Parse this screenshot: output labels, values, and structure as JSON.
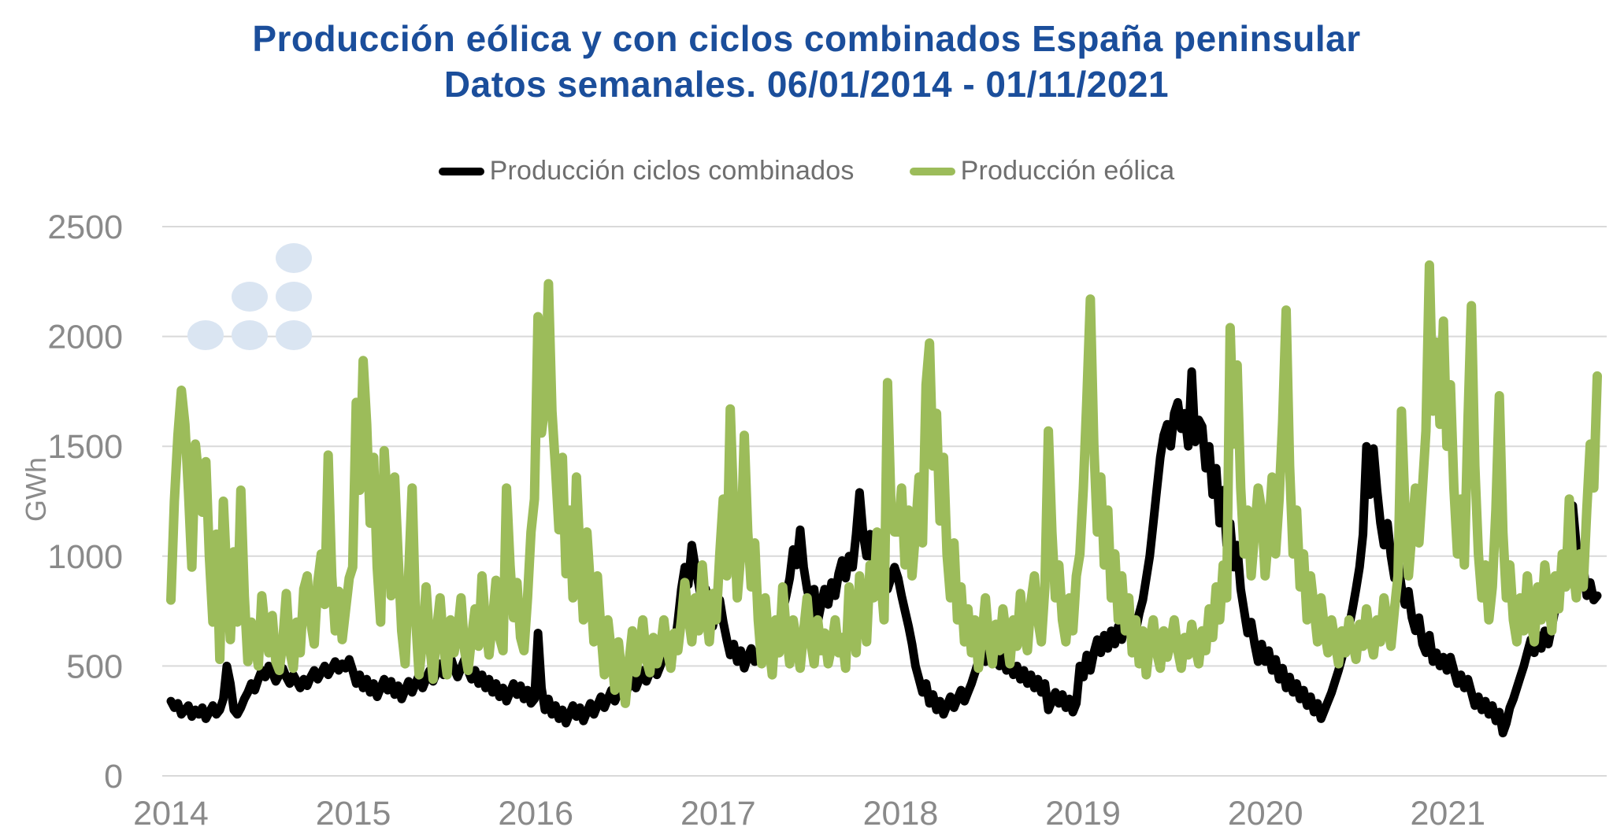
{
  "header": {
    "title_line1": "Producción eólica y con ciclos combinados España peninsular",
    "title_line2": "Datos semanales. 06/01/2014 - 01/11/2021",
    "title_color": "#1b4e9b"
  },
  "legend": {
    "items": [
      {
        "label": "Producción ciclos combinados",
        "color": "#000000"
      },
      {
        "label": "Producción eólica",
        "color": "#9cbc5a"
      }
    ]
  },
  "watermark": {
    "color": "#dae5f2"
  },
  "chart_data": {
    "type": "line",
    "title": "Producción eólica y con ciclos combinados España peninsular",
    "subtitle": "Datos semanales. 06/01/2014 - 01/11/2021",
    "xlabel": "",
    "ylabel": "GWh",
    "frequency": "weekly",
    "x_start": "06/01/2014",
    "x_end": "01/11/2021",
    "x_tick_labels": [
      "2014",
      "2015",
      "2016",
      "2017",
      "2018",
      "2019",
      "2020",
      "2021"
    ],
    "y_ticks": [
      0,
      500,
      1000,
      1500,
      2000,
      2500
    ],
    "ylim": [
      0,
      2500
    ],
    "grid": "horizontal",
    "grid_color": "#d9d9d9",
    "tick_label_color": "#8a8a8a",
    "legend_position": "top",
    "series": [
      {
        "name": "Producción ciclos combinados",
        "color": "#000000",
        "values": [
          340,
          310,
          330,
          280,
          300,
          320,
          270,
          300,
          280,
          310,
          260,
          290,
          320,
          280,
          300,
          350,
          500,
          420,
          300,
          280,
          310,
          350,
          380,
          420,
          390,
          440,
          480,
          450,
          500,
          470,
          430,
          460,
          490,
          450,
          420,
          460,
          430,
          400,
          440,
          410,
          450,
          480,
          440,
          470,
          500,
          460,
          490,
          520,
          480,
          510,
          490,
          530,
          480,
          420,
          460,
          400,
          440,
          380,
          420,
          360,
          400,
          440,
          390,
          430,
          370,
          410,
          350,
          390,
          430,
          380,
          420,
          460,
          400,
          440,
          480,
          430,
          470,
          510,
          460,
          500,
          540,
          490,
          450,
          490,
          530,
          480,
          440,
          480,
          420,
          460,
          400,
          440,
          380,
          420,
          360,
          400,
          340,
          380,
          420,
          370,
          410,
          350,
          390,
          330,
          350,
          650,
          400,
          300,
          350,
          280,
          320,
          260,
          300,
          240,
          280,
          320,
          270,
          310,
          250,
          290,
          330,
          280,
          320,
          360,
          310,
          350,
          390,
          340,
          380,
          420,
          370,
          410,
          450,
          400,
          440,
          480,
          430,
          470,
          510,
          460,
          500,
          550,
          590,
          540,
          580,
          700,
          850,
          950,
          870,
          1050,
          950,
          870,
          780,
          850,
          750,
          680,
          750,
          800,
          700,
          620,
          550,
          600,
          520,
          570,
          490,
          540,
          580,
          520,
          560,
          600,
          550,
          640,
          580,
          700,
          640,
          750,
          820,
          900,
          1030,
          960,
          1120,
          950,
          850,
          780,
          850,
          700,
          780,
          850,
          780,
          880,
          820,
          920,
          980,
          900,
          1000,
          950,
          1100,
          1290,
          1100,
          1000,
          1100,
          950,
          1050,
          900,
          1000,
          850,
          900,
          950,
          900,
          820,
          750,
          680,
          600,
          500,
          440,
          380,
          420,
          330,
          370,
          300,
          340,
          280,
          320,
          360,
          310,
          350,
          390,
          340,
          380,
          420,
          470,
          520,
          570,
          520,
          560,
          600,
          550,
          500,
          540,
          480,
          520,
          460,
          500,
          440,
          480,
          420,
          460,
          400,
          440,
          380,
          420,
          300,
          340,
          380,
          330,
          370,
          310,
          350,
          290,
          330,
          500,
          450,
          550,
          480,
          560,
          620,
          560,
          640,
          580,
          660,
          600,
          680,
          620,
          700,
          650,
          720,
          660,
          740,
          800,
          900,
          1000,
          1150,
          1300,
          1450,
          1550,
          1600,
          1500,
          1650,
          1700,
          1580,
          1650,
          1500,
          1840,
          1520,
          1620,
          1590,
          1400,
          1500,
          1280,
          1400,
          1150,
          1300,
          1050,
          1150,
          950,
          1050,
          850,
          750,
          650,
          700,
          600,
          520,
          600,
          520,
          570,
          480,
          530,
          440,
          490,
          400,
          450,
          380,
          420,
          350,
          390,
          320,
          360,
          290,
          330,
          260,
          300,
          340,
          380,
          430,
          480,
          540,
          600,
          680,
          760,
          850,
          950,
          1100,
          1500,
          1280,
          1490,
          1300,
          1150,
          1050,
          1150,
          1000,
          900,
          980,
          860,
          780,
          840,
          720,
          660,
          720,
          600,
          560,
          640,
          520,
          560,
          500,
          540,
          480,
          540,
          480,
          420,
          460,
          400,
          440,
          380,
          320,
          360,
          300,
          340,
          280,
          320,
          250,
          290,
          195,
          240,
          310,
          350,
          400,
          450,
          500,
          560,
          620,
          560,
          640,
          580,
          660,
          600,
          680,
          760,
          840,
          920,
          1000,
          1100,
          1230,
          1050,
          900,
          960,
          820,
          880,
          800,
          820
        ]
      },
      {
        "name": "Producción eólica",
        "color": "#9cbc5a",
        "values": [
          800,
          1250,
          1550,
          1755,
          1600,
          1300,
          950,
          1510,
          1350,
          1200,
          1430,
          1000,
          700,
          1100,
          530,
          1250,
          900,
          620,
          1020,
          700,
          1300,
          820,
          520,
          700,
          610,
          500,
          820,
          660,
          560,
          730,
          520,
          480,
          610,
          830,
          570,
          490,
          700,
          560,
          850,
          910,
          700,
          600,
          880,
          1010,
          780,
          1460,
          910,
          660,
          840,
          620,
          760,
          900,
          950,
          1700,
          1300,
          1890,
          1600,
          1150,
          1450,
          950,
          700,
          1480,
          1210,
          820,
          1360,
          1000,
          660,
          510,
          910,
          1310,
          720,
          460,
          620,
          860,
          610,
          440,
          660,
          810,
          590,
          460,
          710,
          560,
          650,
          810,
          570,
          480,
          630,
          760,
          590,
          910,
          690,
          550,
          710,
          890,
          630,
          570,
          1310,
          960,
          720,
          880,
          630,
          570,
          810,
          1110,
          1260,
          2090,
          1560,
          1690,
          2240,
          1660,
          1400,
          1120,
          1450,
          920,
          1210,
          810,
          1360,
          1010,
          710,
          1110,
          860,
          610,
          910,
          660,
          460,
          710,
          560,
          390,
          610,
          460,
          330,
          510,
          660,
          470,
          560,
          710,
          530,
          470,
          630,
          510,
          570,
          710,
          570,
          490,
          650,
          570,
          710,
          880,
          730,
          610,
          810,
          660,
          960,
          760,
          610,
          830,
          710,
          1010,
          1260,
          910,
          1670,
          1210,
          810,
          1010,
          1550,
          1110,
          860,
          1060,
          710,
          510,
          810,
          610,
          460,
          710,
          560,
          860,
          660,
          510,
          710,
          610,
          490,
          660,
          810,
          610,
          510,
          710,
          570,
          650,
          510,
          590,
          710,
          560,
          630,
          490,
          860,
          710,
          560,
          910,
          760,
          610,
          960,
          810,
          1110,
          910,
          710,
          1790,
          1210,
          1110,
          1110,
          1310,
          960,
          1210,
          910,
          1110,
          1360,
          1060,
          1780,
          1970,
          1410,
          1650,
          1160,
          1450,
          1010,
          810,
          1060,
          710,
          860,
          610,
          760,
          560,
          710,
          490,
          630,
          810,
          610,
          510,
          690,
          570,
          760,
          630,
          510,
          710,
          590,
          830,
          660,
          570,
          790,
          910,
          710,
          610,
          860,
          1570,
          1110,
          810,
          960,
          710,
          610,
          810,
          660,
          910,
          1010,
          1310,
          1710,
          2170,
          1510,
          1110,
          1360,
          960,
          1210,
          810,
          1010,
          710,
          910,
          660,
          810,
          560,
          710,
          510,
          660,
          460,
          610,
          710,
          560,
          490,
          660,
          540,
          610,
          710,
          570,
          490,
          630,
          550,
          690,
          590,
          510,
          660,
          570,
          760,
          630,
          860,
          710,
          960,
          810,
          2040,
          1510,
          1870,
          1310,
          1010,
          1210,
          910,
          1110,
          1310,
          1210,
          910,
          1110,
          1360,
          1010,
          1260,
          1610,
          2120,
          1410,
          1010,
          1210,
          860,
          1010,
          710,
          910,
          760,
          610,
          810,
          660,
          560,
          710,
          610,
          510,
          660,
          560,
          710,
          610,
          530,
          690,
          590,
          760,
          630,
          550,
          710,
          610,
          810,
          690,
          590,
          760,
          910,
          1660,
          1210,
          910,
          1110,
          1310,
          1060,
          1310,
          1570,
          2325,
          1660,
          1974,
          1600,
          2070,
          1500,
          1780,
          1310,
          1010,
          1260,
          960,
          1610,
          2140,
          1410,
          1010,
          810,
          960,
          710,
          860,
          1210,
          1730,
          1110,
          810,
          960,
          710,
          610,
          810,
          660,
          910,
          710,
          610,
          860,
          710,
          960,
          810,
          660,
          910,
          760,
          1010,
          860,
          1260,
          960,
          810,
          1010,
          860,
          1210,
          1510,
          1310,
          1820
        ]
      }
    ]
  }
}
